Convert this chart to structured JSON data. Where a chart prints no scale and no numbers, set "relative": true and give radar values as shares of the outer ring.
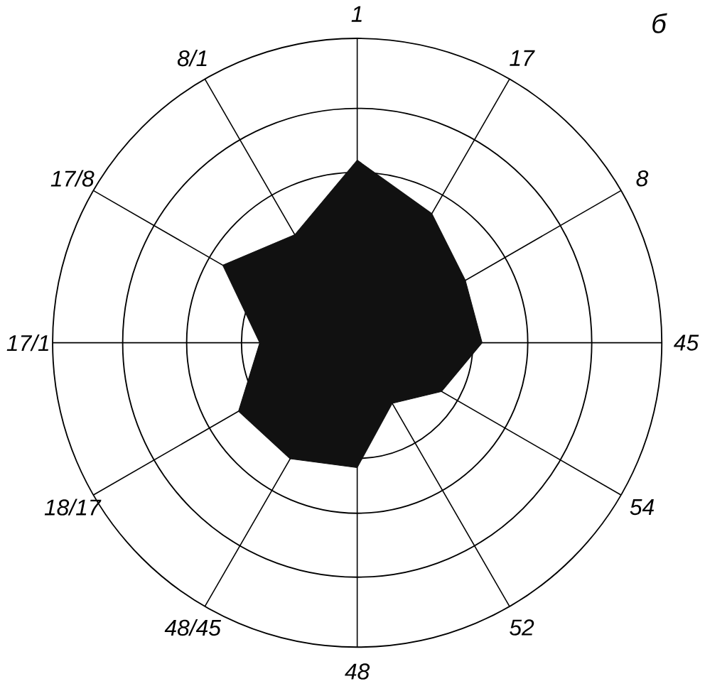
{
  "chart_data": {
    "type": "radar",
    "relative": true,
    "grid": true,
    "categories": [
      "1",
      "17",
      "8",
      "45",
      "54",
      "52",
      "48",
      "48/45",
      "18/17",
      "17/1",
      "17/8",
      "8/1"
    ],
    "series": [
      {
        "color": "#111111",
        "values": [
          0.6,
          0.49,
          0.41,
          0.41,
          0.32,
          0.23,
          0.41,
          0.44,
          0.45,
          0.32,
          0.51,
          0.41
        ]
      }
    ],
    "annotations": [
      "б"
    ]
  }
}
